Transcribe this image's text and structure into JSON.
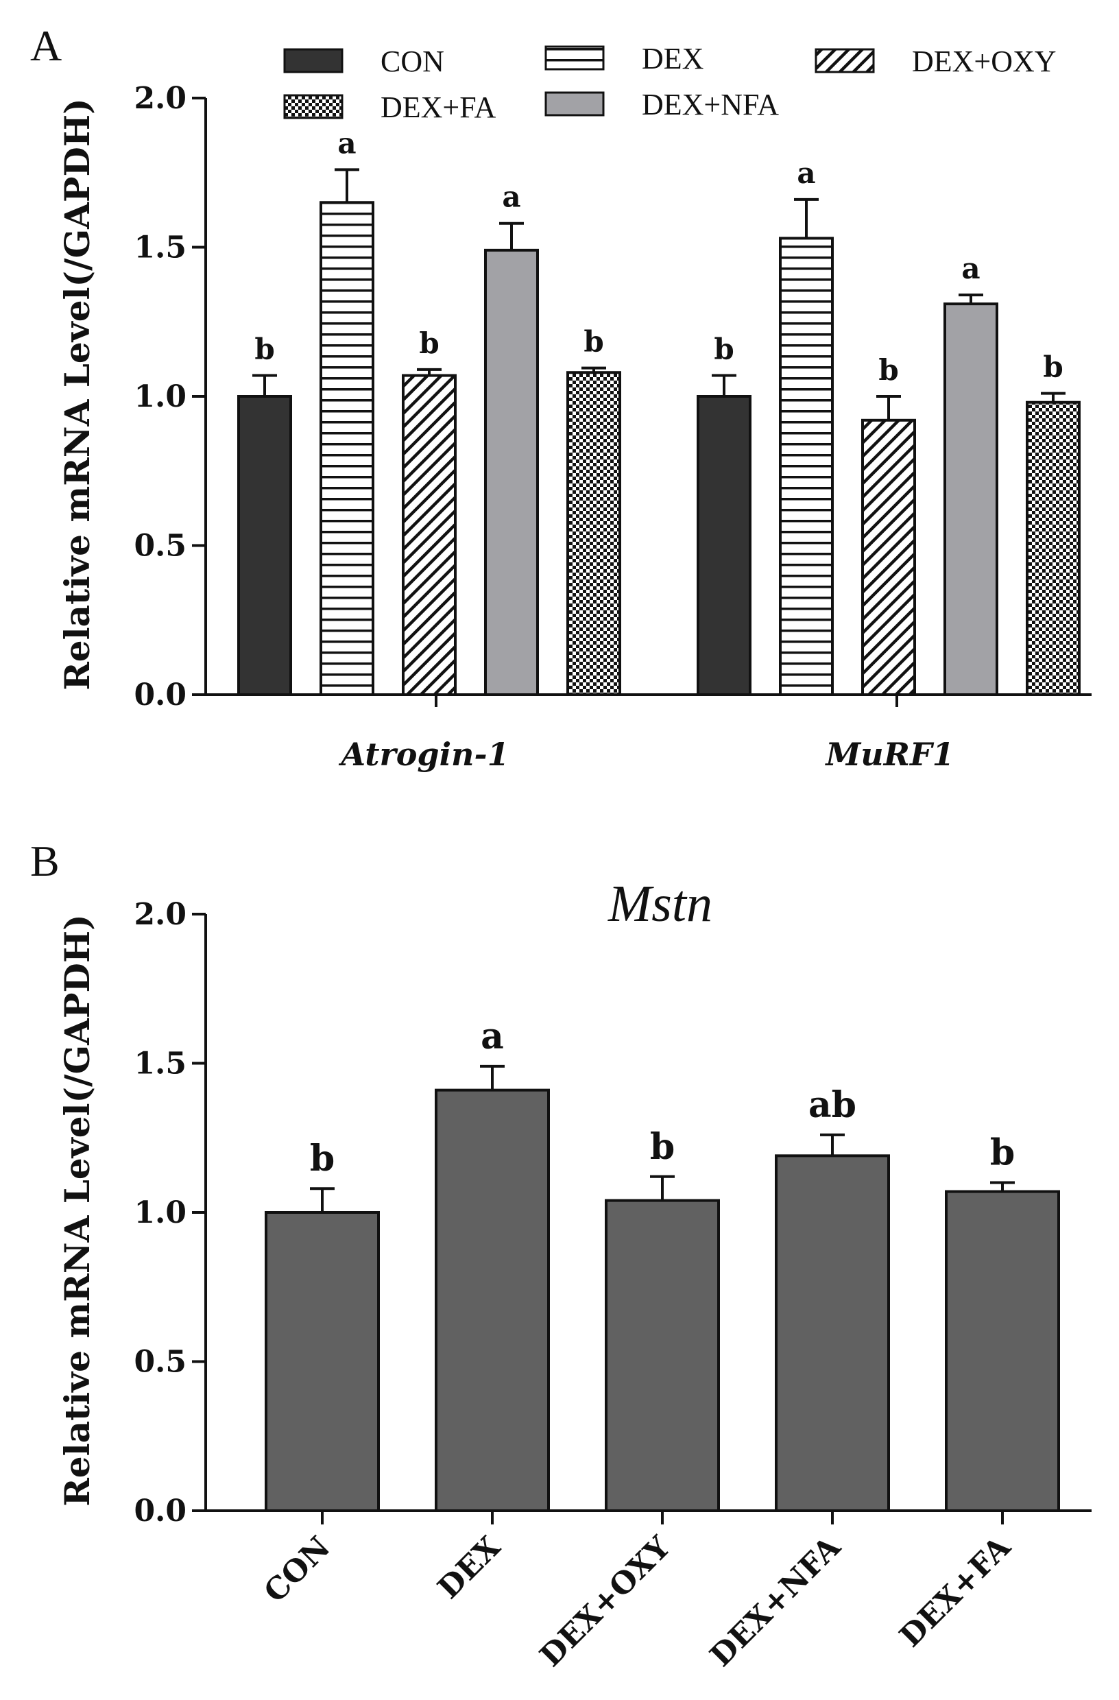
{
  "chart_data": [
    {
      "panel": "A",
      "type": "bar",
      "ylabel": "Relative mRNA Level(/GAPDH)",
      "ylim": [
        0,
        2.0
      ],
      "yticks": [
        "0.0",
        "0.5",
        "1.0",
        "1.5",
        "2.0"
      ],
      "categories": [
        "Atrogin-1",
        "MuRF1"
      ],
      "legend": [
        "CON",
        "DEX",
        "DEX+OXY",
        "DEX+FA",
        "DEX+NFA"
      ],
      "series": [
        {
          "name": "CON",
          "pattern": "solid-dark",
          "values": [
            1.0,
            1.0
          ],
          "errors": [
            0.07,
            0.07
          ],
          "letters": [
            "b",
            "b"
          ]
        },
        {
          "name": "DEX",
          "pattern": "horizontal-lines",
          "values": [
            1.65,
            1.53
          ],
          "errors": [
            0.11,
            0.13
          ],
          "letters": [
            "a",
            "a"
          ]
        },
        {
          "name": "DEX+OXY",
          "pattern": "diagonal-lines",
          "values": [
            1.07,
            0.92
          ],
          "errors": [
            0.02,
            0.08
          ],
          "letters": [
            "b",
            "b"
          ]
        },
        {
          "name": "DEX+NFA",
          "pattern": "solid-gray",
          "values": [
            1.49,
            1.31
          ],
          "errors": [
            0.09,
            0.03
          ],
          "letters": [
            "a",
            "a"
          ]
        },
        {
          "name": "DEX+FA",
          "pattern": "checker",
          "values": [
            1.08,
            0.98
          ],
          "errors": [
            0.015,
            0.03
          ],
          "letters": [
            "b",
            "b"
          ]
        }
      ]
    },
    {
      "panel": "B",
      "type": "bar",
      "title": "Mstn",
      "ylabel": "Relative mRNA Level(/GAPDH)",
      "ylim": [
        0,
        2.0
      ],
      "yticks": [
        "0.0",
        "0.5",
        "1.0",
        "1.5",
        "2.0"
      ],
      "categories": [
        "CON",
        "DEX",
        "DEX+OXY",
        "DEX+NFA",
        "DEX+FA"
      ],
      "values": [
        1.0,
        1.41,
        1.04,
        1.19,
        1.07
      ],
      "errors": [
        0.08,
        0.08,
        0.08,
        0.07,
        0.03
      ],
      "letters": [
        "b",
        "a",
        "b",
        "ab",
        "b"
      ]
    }
  ],
  "colors": {
    "dark": "#333333",
    "gray": "#a2a2a6",
    "panelB": "#616161",
    "axis": "#111111"
  }
}
